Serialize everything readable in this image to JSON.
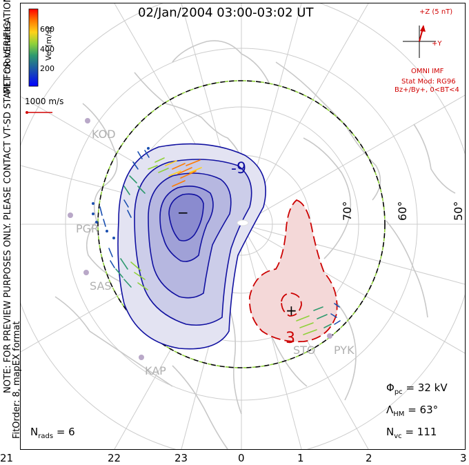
{
  "header": {
    "title": "02/Jan/2004 03:00-03:02 UT"
  },
  "side_notes": {
    "coords": "MLT coordinates",
    "staff": "NOTE: FOR PREVIEW PURPOSES ONLY. PLEASE CONTACT VT-SD STAFF FOR VERIFICATION.",
    "fitorder": "FitOrder: 8, mapEX format"
  },
  "velocity_scale": {
    "label": "Vel [m/s]",
    "ticks": [
      "600",
      "400",
      "200"
    ],
    "colors": [
      "#0000ff",
      "#1a4fb0",
      "#2e9a6e",
      "#8fd13a",
      "#ffd21a",
      "#ff7a00",
      "#ff0000"
    ]
  },
  "reference_vector": {
    "label": "1000 m/s",
    "color": "#d10000"
  },
  "imf": {
    "z_label": "+Z (5 nT)",
    "y_label": "+Y",
    "source": "OMNI IMF",
    "stat_mod": "Stat Mod: RG96",
    "conditions": "Bz+/By+, 0<BT<4",
    "color": "#d10000"
  },
  "stats": {
    "potential": {
      "symbol": "Φ",
      "sub": "pc",
      "value": "=  32 kV"
    },
    "hm_boundary": {
      "symbol": "Λ",
      "sub": "HM",
      "value": "=  63°"
    },
    "vectors": {
      "symbol": "N",
      "sub": "vc",
      "value": "=  111"
    },
    "radars": {
      "symbol": "N",
      "sub": "rads",
      "value": "=  6"
    }
  },
  "mlt_ticks": [
    "21",
    "22",
    "23",
    "0",
    "1",
    "2",
    "3"
  ],
  "latitude_labels": [
    "70°",
    "60°",
    "50°"
  ],
  "stations": [
    "KOD",
    "PGR",
    "SAS",
    "KAP",
    "STO",
    "PYK"
  ],
  "contours": {
    "negative_label": "-9",
    "positive_label": "3",
    "min_marker": "−",
    "max_marker": "+"
  },
  "colors": {
    "negative": "#1010a0",
    "positive": "#cc0000",
    "grid": "#cccccc",
    "coast": "#c8c8c8",
    "boundary_dash": "#8fd13a"
  }
}
